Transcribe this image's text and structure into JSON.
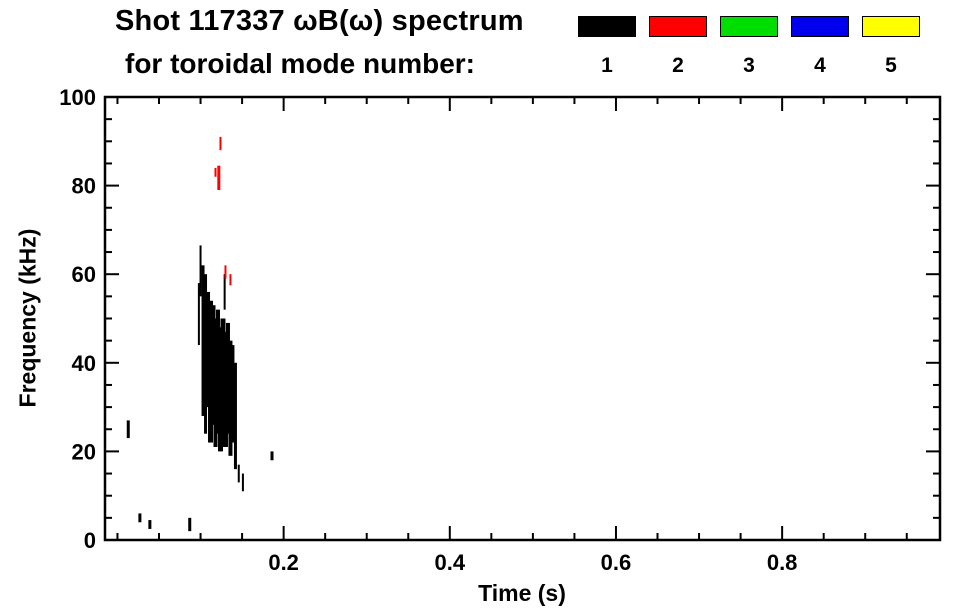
{
  "header": {
    "title_line1": "Shot 117337 ωB(ω) spectrum",
    "title_line2": "for toroidal mode number:"
  },
  "axes": {
    "x_label": "Time (s)",
    "y_label": "Frequency (kHz)"
  },
  "chart_data": {
    "type": "scatter",
    "title": "Shot 117337 ωB(ω) spectrum for toroidal mode number:",
    "xlabel": "Time (s)",
    "ylabel": "Frequency (kHz)",
    "xlim": [
      -0.015,
      0.99
    ],
    "ylim": [
      0,
      100
    ],
    "grid": false,
    "legend_position": "top-right",
    "x_ticks": [
      {
        "v": 0.2,
        "label": "0.2"
      },
      {
        "v": 0.4,
        "label": "0.4"
      },
      {
        "v": 0.6,
        "label": "0.6"
      },
      {
        "v": 0.8,
        "label": "0.8"
      }
    ],
    "x_minor_step": 0.05,
    "y_ticks": [
      {
        "v": 0,
        "label": "0"
      },
      {
        "v": 20,
        "label": "20"
      },
      {
        "v": 40,
        "label": "40"
      },
      {
        "v": 60,
        "label": "60"
      },
      {
        "v": 80,
        "label": "80"
      },
      {
        "v": 100,
        "label": "100"
      }
    ],
    "y_minor_step": 5,
    "series": [
      {
        "name": "1",
        "color": "#000000",
        "segments": [
          {
            "t": 0.013,
            "f0": 23,
            "f1": 27,
            "w": 3
          },
          {
            "t": 0.027,
            "f0": 4,
            "f1": 6,
            "w": 3
          },
          {
            "t": 0.039,
            "f0": 2.5,
            "f1": 4.5,
            "w": 3
          },
          {
            "t": 0.087,
            "f0": 2,
            "f1": 5,
            "w": 3
          },
          {
            "t": 0.098,
            "f0": 44,
            "f1": 58,
            "w": 2
          },
          {
            "t": 0.1,
            "f0": 55,
            "f1": 66.5,
            "w": 2
          },
          {
            "t": 0.103,
            "f0": 28,
            "f1": 62,
            "w": 3
          },
          {
            "t": 0.106,
            "f0": 24,
            "f1": 60,
            "w": 3
          },
          {
            "t": 0.109,
            "f0": 30,
            "f1": 56,
            "w": 4
          },
          {
            "t": 0.112,
            "f0": 22,
            "f1": 54,
            "w": 5
          },
          {
            "t": 0.115,
            "f0": 26,
            "f1": 53,
            "w": 5
          },
          {
            "t": 0.118,
            "f0": 21,
            "f1": 50,
            "w": 4
          },
          {
            "t": 0.121,
            "f0": 24,
            "f1": 52,
            "w": 4
          },
          {
            "t": 0.124,
            "f0": 20,
            "f1": 48,
            "w": 5
          },
          {
            "t": 0.127,
            "f0": 23,
            "f1": 50,
            "w": 5
          },
          {
            "t": 0.129,
            "f0": 52,
            "f1": 60,
            "w": 2
          },
          {
            "t": 0.13,
            "f0": 21,
            "f1": 47,
            "w": 5
          },
          {
            "t": 0.133,
            "f0": 24,
            "f1": 49,
            "w": 4
          },
          {
            "t": 0.136,
            "f0": 19,
            "f1": 45,
            "w": 4
          },
          {
            "t": 0.139,
            "f0": 22,
            "f1": 44,
            "w": 3
          },
          {
            "t": 0.142,
            "f0": 16,
            "f1": 40,
            "w": 3
          },
          {
            "t": 0.146,
            "f0": 13,
            "f1": 17,
            "w": 2
          },
          {
            "t": 0.151,
            "f0": 11,
            "f1": 15,
            "w": 2
          },
          {
            "t": 0.186,
            "f0": 18,
            "f1": 20,
            "w": 3
          }
        ]
      },
      {
        "name": "2",
        "color": "#ff0000",
        "segments": [
          {
            "t": 0.118,
            "f0": 82,
            "f1": 84,
            "w": 2
          },
          {
            "t": 0.122,
            "f0": 79,
            "f1": 84.5,
            "w": 3
          },
          {
            "t": 0.124,
            "f0": 88,
            "f1": 91,
            "w": 2
          },
          {
            "t": 0.13,
            "f0": 59,
            "f1": 62,
            "w": 2
          },
          {
            "t": 0.136,
            "f0": 57.5,
            "f1": 60,
            "w": 2
          }
        ]
      },
      {
        "name": "3",
        "color": "#00dd00",
        "segments": []
      },
      {
        "name": "4",
        "color": "#0000ee",
        "segments": []
      },
      {
        "name": "5",
        "color": "#ffff00",
        "segments": []
      }
    ]
  }
}
